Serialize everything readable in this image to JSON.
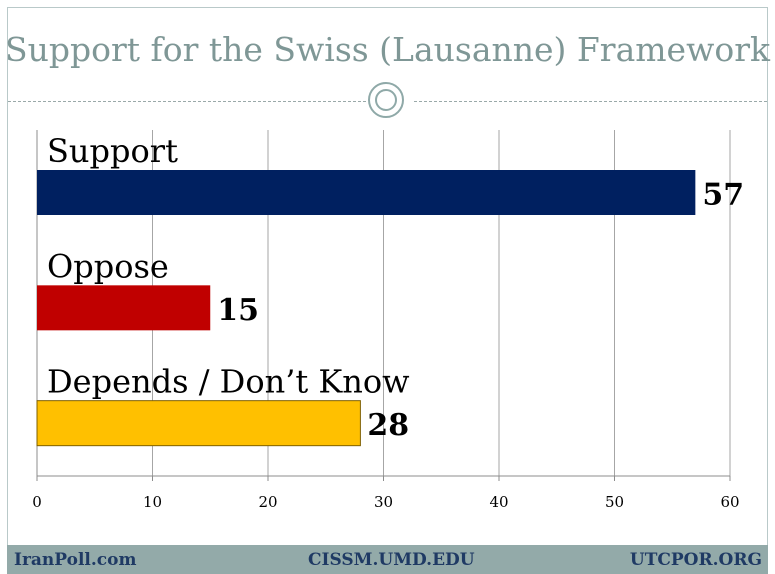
{
  "slide": {
    "title": "Support for the Swiss (Lausanne) Framework"
  },
  "footer": {
    "left": "IranPoll.com",
    "center": "CISSM.UMD.EDU",
    "right": "UTCPOR.ORG"
  },
  "chart_data": {
    "type": "bar",
    "orientation": "horizontal",
    "title": "",
    "xlabel": "",
    "ylabel": "",
    "categories": [
      "Support",
      "Oppose",
      "Depends / Don’t Know"
    ],
    "values": [
      57,
      15,
      28
    ],
    "colors": [
      "#002060",
      "#c00000",
      "#ffc000"
    ],
    "xlim": [
      0,
      60
    ],
    "xticks": [
      0,
      10,
      20,
      30,
      40,
      50,
      60
    ],
    "grid": true,
    "data_labels": true
  }
}
